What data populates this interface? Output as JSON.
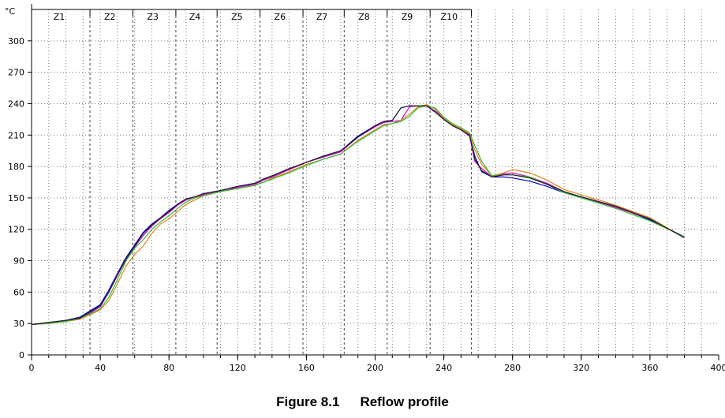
{
  "chart_data": {
    "type": "line",
    "title": "",
    "xlabel": "",
    "ylabel": "°C",
    "xlim": [
      0,
      400
    ],
    "ylim": [
      0,
      330
    ],
    "grid": true,
    "x_ticks": [
      0,
      40,
      80,
      120,
      160,
      200,
      240,
      280,
      320,
      360,
      400
    ],
    "y_ticks": [
      0,
      30,
      60,
      90,
      120,
      150,
      180,
      210,
      240,
      270,
      300
    ],
    "zones": [
      {
        "label": "Z1",
        "start": 0,
        "end": 34
      },
      {
        "label": "Z2",
        "start": 34,
        "end": 59
      },
      {
        "label": "Z3",
        "start": 59,
        "end": 84
      },
      {
        "label": "Z4",
        "start": 84,
        "end": 108
      },
      {
        "label": "Z5",
        "start": 108,
        "end": 133
      },
      {
        "label": "Z6",
        "start": 133,
        "end": 158
      },
      {
        "label": "Z7",
        "start": 158,
        "end": 182
      },
      {
        "label": "Z8",
        "start": 182,
        "end": 207
      },
      {
        "label": "Z9",
        "start": 207,
        "end": 232
      },
      {
        "label": "Z10",
        "start": 232,
        "end": 256
      }
    ],
    "series": [
      {
        "color": "#0000cc",
        "x": [
          0,
          10,
          20,
          28,
          35,
          40,
          45,
          50,
          55,
          60,
          65,
          70,
          75,
          80,
          85,
          90,
          95,
          100,
          110,
          120,
          130,
          135,
          140,
          150,
          160,
          170,
          180,
          190,
          200,
          205,
          210,
          215,
          220,
          225,
          230,
          235,
          240,
          245,
          250,
          255,
          258,
          262,
          268,
          275,
          280,
          290,
          300,
          310,
          320,
          340,
          360,
          380
        ],
        "y": [
          29,
          31,
          33,
          36,
          43,
          48,
          62,
          78,
          93,
          105,
          117,
          125,
          131,
          138,
          144,
          149,
          151,
          154,
          157,
          161,
          164,
          168,
          171,
          177,
          184,
          190,
          195,
          209,
          219,
          223,
          224,
          236,
          238,
          238,
          238,
          232,
          225,
          219,
          215,
          209,
          190,
          175,
          170,
          170,
          169,
          166,
          161,
          155,
          151,
          142,
          129,
          113
        ]
      },
      {
        "color": "#cc00cc",
        "x": [
          0,
          10,
          20,
          28,
          35,
          40,
          45,
          50,
          55,
          60,
          65,
          70,
          75,
          80,
          85,
          90,
          95,
          100,
          110,
          120,
          130,
          135,
          140,
          150,
          160,
          170,
          180,
          190,
          200,
          205,
          210,
          215,
          220,
          225,
          230,
          235,
          240,
          245,
          250,
          255,
          258,
          262,
          268,
          275,
          280,
          290,
          300,
          310,
          320,
          340,
          360,
          380
        ],
        "y": [
          29,
          31,
          32,
          35,
          41,
          46,
          60,
          77,
          91,
          103,
          114,
          123,
          130,
          136,
          143,
          148,
          151,
          153,
          157,
          160,
          163,
          167,
          170,
          177,
          184,
          189,
          194,
          208,
          218,
          222,
          223,
          224,
          237,
          238,
          238,
          233,
          226,
          219,
          215,
          209,
          185,
          178,
          170,
          173,
          174,
          170,
          164,
          156,
          151,
          141,
          130,
          112
        ]
      },
      {
        "color": "#e08820",
        "x": [
          0,
          10,
          20,
          28,
          35,
          40,
          45,
          50,
          55,
          60,
          65,
          70,
          75,
          80,
          85,
          90,
          95,
          100,
          110,
          120,
          130,
          135,
          140,
          150,
          160,
          170,
          180,
          190,
          200,
          205,
          210,
          215,
          220,
          225,
          230,
          235,
          240,
          245,
          250,
          255,
          258,
          262,
          268,
          275,
          280,
          290,
          300,
          310,
          320,
          340,
          360,
          380
        ],
        "y": [
          29,
          30,
          32,
          34,
          39,
          43,
          52,
          68,
          85,
          96,
          104,
          116,
          125,
          130,
          137,
          144,
          148,
          152,
          156,
          159,
          162,
          165,
          169,
          175,
          182,
          187,
          192,
          205,
          215,
          220,
          221,
          224,
          230,
          237,
          239,
          235,
          226,
          220,
          216,
          211,
          196,
          182,
          171,
          174,
          177,
          174,
          167,
          158,
          153,
          143,
          131,
          112
        ]
      },
      {
        "color": "#33bb33",
        "x": [
          0,
          10,
          20,
          28,
          35,
          40,
          45,
          50,
          55,
          60,
          65,
          70,
          75,
          80,
          85,
          90,
          95,
          100,
          110,
          120,
          130,
          135,
          140,
          150,
          160,
          170,
          180,
          190,
          200,
          205,
          210,
          215,
          220,
          225,
          230,
          235,
          240,
          245,
          250,
          255,
          258,
          262,
          268,
          275,
          280,
          290,
          300,
          310,
          320,
          340,
          360,
          380
        ],
        "y": [
          29,
          30,
          32,
          35,
          40,
          44,
          55,
          72,
          90,
          102,
          110,
          120,
          127,
          133,
          140,
          146,
          150,
          152,
          156,
          159,
          162,
          165,
          168,
          174,
          181,
          187,
          192,
          204,
          214,
          219,
          221,
          223,
          228,
          236,
          238,
          236,
          227,
          221,
          217,
          212,
          200,
          185,
          171,
          172,
          172,
          170,
          163,
          155,
          150,
          140,
          128,
          113
        ]
      },
      {
        "color": "#222222",
        "x": [
          0,
          10,
          20,
          28,
          35,
          40,
          45,
          50,
          55,
          60,
          65,
          70,
          75,
          80,
          85,
          90,
          95,
          100,
          110,
          120,
          130,
          135,
          140,
          150,
          160,
          170,
          180,
          190,
          200,
          205,
          210,
          215,
          220,
          225,
          230,
          235,
          240,
          245,
          250,
          255,
          258,
          262,
          268,
          275,
          280,
          290,
          300,
          310,
          320,
          340,
          360,
          380
        ],
        "y": [
          29,
          31,
          33,
          35,
          42,
          47,
          60,
          76,
          92,
          104,
          116,
          124,
          131,
          137,
          144,
          149,
          151,
          154,
          157,
          161,
          164,
          168,
          171,
          178,
          184,
          190,
          195,
          208,
          219,
          223,
          224,
          236,
          238,
          238,
          238,
          232,
          225,
          219,
          215,
          210,
          187,
          176,
          170,
          172,
          172,
          169,
          163,
          156,
          151,
          142,
          130,
          112
        ]
      }
    ]
  },
  "caption": {
    "number": "Figure 8.1",
    "text": "Reflow profile"
  }
}
